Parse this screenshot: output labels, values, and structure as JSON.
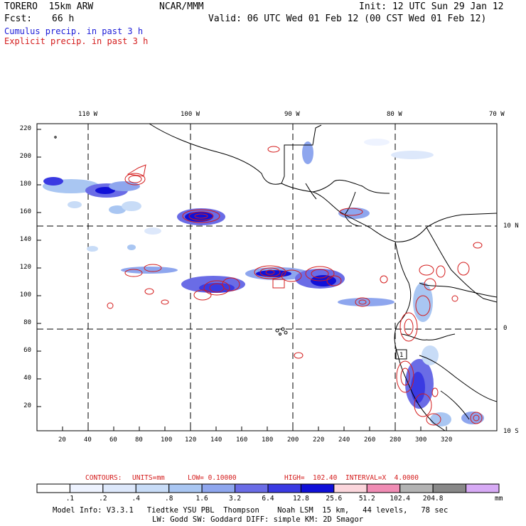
{
  "header": {
    "model": "TORERO  15km ARW",
    "org": "NCAR/MMM",
    "init": "Init: 12 UTC Sun 29 Jan 12",
    "fcst_label": "Fcst:",
    "fcst_value": "66 h",
    "valid": "Valid: 06 UTC Wed 01 Feb 12 (00 CST Wed 01 Feb 12)",
    "cumulus": "Cumulus precip. in past 3 h",
    "explicit": "Explicit precip. in past 3 h"
  },
  "map": {
    "top_longitude_labels": [
      "110 W",
      "100 W",
      "90 W",
      "80 W",
      "70 W"
    ],
    "right_latitude_labels": [
      "10 N",
      "0",
      "10 S"
    ],
    "x_grid_ticks": [
      "20",
      "40",
      "60",
      "80",
      "100",
      "120",
      "140",
      "160",
      "180",
      "200",
      "220",
      "240",
      "260",
      "280",
      "300",
      "320"
    ],
    "y_grid_ticks": [
      "20",
      "40",
      "60",
      "80",
      "100",
      "120",
      "140",
      "160",
      "180",
      "200",
      "220"
    ],
    "grid_point_box_label": "1",
    "colors": {
      "cumulus": "#1c1cd8",
      "explicit": "#d41c1c",
      "coast": "#000000"
    }
  },
  "contours_line": {
    "label": "CONTOURS:",
    "units": "UNITS=mm",
    "low": "LOW= 0.10000",
    "high": "HIGH=  102.40",
    "interval": "INTERVAL=X  4.0000"
  },
  "colorbar": {
    "labels": [
      ".1",
      ".2",
      ".4",
      ".8",
      "1.6",
      "3.2",
      "6.4",
      "12.8",
      "25.6",
      "51.2",
      "102.4",
      "204.8"
    ],
    "unit": "mm",
    "colors": [
      "#ffffff",
      "#eef3ff",
      "#dde8fb",
      "#c8dcf7",
      "#a9c6f2",
      "#8ea6ee",
      "#6a6ce6",
      "#3a3ae2",
      "#1010d8",
      "#fbd6dc",
      "#f08cb4",
      "#b3b3b3",
      "#888888",
      "#d7aaf5"
    ]
  },
  "footer": {
    "line1": "Model Info: V3.3.1   Tiedtke YSU PBL  Thompson    Noah LSM  15 km,   44 levels,   78 sec",
    "line2": "LW: Godd SW: Goddard DIFF: simple KM: 2D Smagor"
  }
}
